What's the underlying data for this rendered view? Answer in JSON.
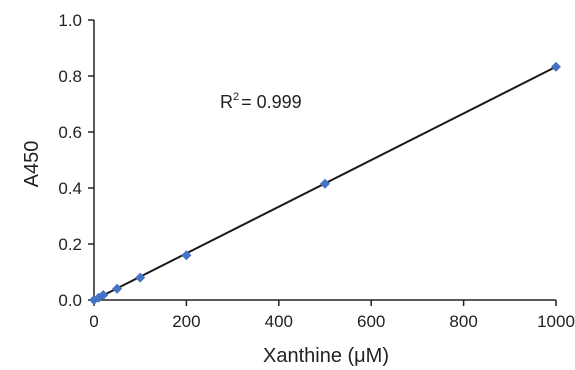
{
  "chart_data": {
    "type": "scatter",
    "title": "",
    "xlabel": "Xanthine (μM)",
    "ylabel": "A450",
    "xlim": [
      0,
      1000
    ],
    "ylim": [
      0,
      1.0
    ],
    "x_ticks": [
      "0",
      "200",
      "400",
      "600",
      "800",
      "1000"
    ],
    "y_ticks": [
      "0.0",
      "0.2",
      "0.4",
      "0.6",
      "0.8",
      "1.0"
    ],
    "grid": false,
    "legend": "none",
    "series": [
      {
        "x": [
          0,
          10,
          20,
          50,
          100,
          200,
          500,
          1000
        ],
        "y": [
          0.0,
          0.008,
          0.018,
          0.04,
          0.08,
          0.16,
          0.415,
          0.833
        ]
      }
    ],
    "trendline": {
      "type": "linear",
      "x": [
        0,
        1000
      ],
      "y": [
        0.0,
        0.833
      ]
    },
    "annotation": {
      "r2_prefix": "R",
      "r2_sup": "2",
      "r2_value": "= 0.999"
    },
    "colors": {
      "marker": "#4472C4",
      "line": "#1a1a1a",
      "axis": "#222222"
    }
  }
}
